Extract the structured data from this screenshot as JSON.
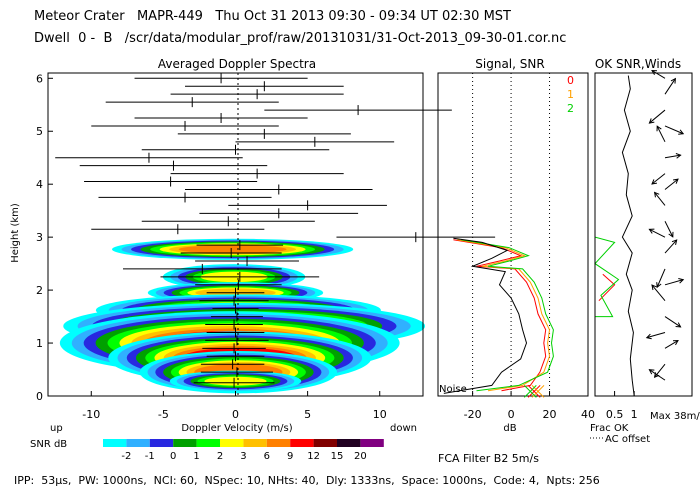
{
  "header": {
    "line1": "Meteor Crater   MAPR-449   Thu Oct 31 2013 09:30 - 09:34 UT 02:30 MST",
    "line2": "Dwell  0 -  B   /scr/data/modular_prof/raw/20131031/31-Oct-2013_09-30-01.cor.nc"
  },
  "footer": "IPP:  53μs,  PW: 1000ns,  NCI: 60,  NSpec: 10, NHts: 40,  Dly: 1333ns,  Space: 1000ns,  Code: 4,  Npts: 256",
  "colors": {
    "snr_scale": [
      "#00ffff",
      "#30b0ff",
      "#2828e0",
      "#00a000",
      "#00ff00",
      "#ffff00",
      "#ffc000",
      "#ff8000",
      "#ff0000",
      "#800000",
      "#200020",
      "#800080"
    ],
    "beam0": "#ff0000",
    "beam1": "#ffa000",
    "beam2": "#00d000",
    "black": "#000000"
  },
  "chart_data": [
    {
      "type": "heatmap",
      "title": "Averaged Doppler Spectra",
      "xlabel": "Doppler Velocity (m/s)",
      "ylabel": "Height (km)",
      "xlim": [
        -13,
        13
      ],
      "ylim": [
        0,
        6.1
      ],
      "xticks": [
        -10,
        -5,
        0,
        5,
        10
      ],
      "yticks": [
        0,
        1,
        2,
        3,
        4,
        5,
        6
      ],
      "corner_left": "up",
      "corner_right": "down",
      "blobs": [
        {
          "height": 2.77,
          "vel": -0.2,
          "width": 2.2,
          "thick": 0.1,
          "level": 7
        },
        {
          "height": 2.25,
          "vel": -0.1,
          "width": 1.3,
          "thick": 0.12,
          "level": 5
        },
        {
          "height": 1.95,
          "vel": 0.0,
          "width": 1.6,
          "thick": 0.1,
          "level": 6
        },
        {
          "height": 1.62,
          "vel": 0.2,
          "width": 2.6,
          "thick": 0.15,
          "level": 6
        },
        {
          "height": 1.32,
          "vel": 0.6,
          "width": 3.3,
          "thick": 0.22,
          "level": 7
        },
        {
          "height": 1.0,
          "vel": -0.4,
          "width": 3.1,
          "thick": 0.3,
          "level": 8
        },
        {
          "height": 0.72,
          "vel": 0.3,
          "width": 2.4,
          "thick": 0.25,
          "level": 8
        },
        {
          "height": 0.45,
          "vel": 0.2,
          "width": 1.8,
          "thick": 0.2,
          "level": 7
        },
        {
          "height": 0.28,
          "vel": 0.0,
          "width": 1.2,
          "thick": 0.1,
          "level": 5
        }
      ],
      "moments": [
        {
          "height": 0.25,
          "vel": -0.1,
          "width": 2.8
        },
        {
          "height": 0.45,
          "vel": 0.1,
          "width": 2.5
        },
        {
          "height": 0.6,
          "vel": -0.2,
          "width": 2.2
        },
        {
          "height": 0.75,
          "vel": 0.0,
          "width": 2.0
        },
        {
          "height": 0.9,
          "vel": -0.1,
          "width": 2.2
        },
        {
          "height": 1.05,
          "vel": 0.1,
          "width": 2.2
        },
        {
          "height": 1.2,
          "vel": 0.0,
          "width": 2.0
        },
        {
          "height": 1.35,
          "vel": -0.1,
          "width": 2.0
        },
        {
          "height": 1.5,
          "vel": 0.1,
          "width": 1.8
        },
        {
          "height": 1.65,
          "vel": 0.0,
          "width": 1.6
        },
        {
          "height": 1.8,
          "vel": -0.1,
          "width": 2.4
        },
        {
          "height": 1.95,
          "vel": 0.0,
          "width": 2.0
        },
        {
          "height": 2.1,
          "vel": 0.2,
          "width": 3.0
        },
        {
          "height": 2.25,
          "vel": 0.3,
          "width": 5.5
        },
        {
          "height": 2.4,
          "vel": -2.3,
          "width": 5.5
        },
        {
          "height": 2.55,
          "vel": 0.8,
          "width": 3.6
        },
        {
          "height": 2.7,
          "vel": -0.3,
          "width": 3.5
        },
        {
          "height": 2.85,
          "vel": 0.3,
          "width": 3.0
        },
        {
          "height": 3.0,
          "vel": 12.5,
          "width": 5.5
        },
        {
          "height": 3.15,
          "vel": -4.0,
          "width": 6.0
        },
        {
          "height": 3.3,
          "vel": -0.5,
          "width": 6.0
        },
        {
          "height": 3.45,
          "vel": 3.0,
          "width": 5.5
        },
        {
          "height": 3.6,
          "vel": 5.0,
          "width": 5.5
        },
        {
          "height": 3.75,
          "vel": -3.5,
          "width": 6.0
        },
        {
          "height": 3.9,
          "vel": 3.0,
          "width": 6.5
        },
        {
          "height": 4.05,
          "vel": -4.5,
          "width": 6.0
        },
        {
          "height": 4.2,
          "vel": 1.5,
          "width": 6.0
        },
        {
          "height": 4.35,
          "vel": -4.3,
          "width": 6.5
        },
        {
          "height": 4.5,
          "vel": -6.0,
          "width": 6.5
        },
        {
          "height": 4.65,
          "vel": 0.0,
          "width": 6.5
        },
        {
          "height": 4.8,
          "vel": 5.5,
          "width": 5.5
        },
        {
          "height": 4.95,
          "vel": 2.0,
          "width": 6.0
        },
        {
          "height": 5.1,
          "vel": -3.5,
          "width": 6.5
        },
        {
          "height": 5.25,
          "vel": -1.0,
          "width": 6.0
        },
        {
          "height": 5.4,
          "vel": 8.5,
          "width": 6.5
        },
        {
          "height": 5.55,
          "vel": -3.0,
          "width": 6.0
        },
        {
          "height": 5.7,
          "vel": 1.5,
          "width": 6.0
        },
        {
          "height": 5.85,
          "vel": 2.0,
          "width": 5.5
        },
        {
          "height": 6.0,
          "vel": -1.0,
          "width": 6.0
        }
      ]
    },
    {
      "type": "line",
      "title": "Signal, SNR",
      "xlabel": "dB",
      "xlim": [
        -38,
        40
      ],
      "ylim": [
        0,
        6.1
      ],
      "xticks": [
        -20,
        0,
        20,
        40
      ],
      "dotted_x": [
        -20,
        0,
        20
      ],
      "noise_label": "Noise",
      "beam_labels": [
        "0",
        "1",
        "2"
      ],
      "series": [
        {
          "name": "0",
          "color": "#ff0000",
          "points": [
            [
              -5,
              0.1
            ],
            [
              10,
              0.2
            ],
            [
              15,
              0.45
            ],
            [
              18,
              0.75
            ],
            [
              17,
              1.0
            ],
            [
              18,
              1.25
            ],
            [
              14,
              1.55
            ],
            [
              12,
              1.85
            ],
            [
              8,
              2.15
            ],
            [
              2,
              2.4
            ],
            [
              -18,
              2.45
            ],
            [
              -6,
              2.55
            ],
            [
              5,
              2.65
            ],
            [
              -5,
              2.8
            ],
            [
              -30,
              2.95
            ]
          ]
        },
        {
          "name": "1",
          "color": "#ffa000",
          "points": [
            [
              -12,
              0.1
            ],
            [
              6,
              0.2
            ],
            [
              17,
              0.45
            ],
            [
              20,
              0.75
            ],
            [
              19,
              1.0
            ],
            [
              20,
              1.25
            ],
            [
              16,
              1.55
            ],
            [
              14,
              1.85
            ],
            [
              10,
              2.15
            ],
            [
              4,
              2.4
            ],
            [
              -15,
              2.45
            ],
            [
              -3,
              2.55
            ],
            [
              7,
              2.65
            ],
            [
              -3,
              2.8
            ],
            [
              -28,
              2.95
            ]
          ]
        },
        {
          "name": "2",
          "color": "#00d000",
          "points": [
            [
              -18,
              0.1
            ],
            [
              4,
              0.2
            ],
            [
              19,
              0.45
            ],
            [
              22,
              0.75
            ],
            [
              21,
              1.0
            ],
            [
              22,
              1.25
            ],
            [
              18,
              1.55
            ],
            [
              16,
              1.85
            ],
            [
              12,
              2.15
            ],
            [
              6,
              2.4
            ],
            [
              -12,
              2.45
            ],
            [
              -1,
              2.55
            ],
            [
              9,
              2.65
            ],
            [
              -1,
              2.8
            ],
            [
              -26,
              2.95
            ]
          ]
        },
        {
          "name": "Noise",
          "color": "#000000",
          "points": [
            [
              -35,
              0.05
            ],
            [
              -10,
              0.2
            ],
            [
              -5,
              0.45
            ],
            [
              5,
              0.7
            ],
            [
              8,
              1.0
            ],
            [
              6,
              1.25
            ],
            [
              4,
              1.55
            ],
            [
              0,
              1.85
            ],
            [
              -6,
              2.1
            ],
            [
              -3,
              2.35
            ],
            [
              -20,
              2.45
            ],
            [
              -10,
              2.6
            ],
            [
              -2,
              2.75
            ],
            [
              -15,
              2.9
            ],
            [
              -30,
              2.98
            ]
          ]
        }
      ]
    },
    {
      "type": "line",
      "title": "OK SNR,Winds",
      "xlabel": "Frac OK",
      "xticks": [
        0.5,
        1
      ],
      "xlim": [
        0,
        1.2
      ],
      "ylim": [
        0,
        6.1
      ],
      "note": "AC offset",
      "scale_label": "Max 38m/s",
      "series": [
        {
          "name": "frac_ok",
          "color": "#000000",
          "points": [
            [
              1.0,
              0.0
            ],
            [
              0.95,
              0.3
            ],
            [
              0.9,
              0.7
            ],
            [
              0.98,
              1.2
            ],
            [
              0.85,
              1.6
            ],
            [
              0.95,
              2.0
            ],
            [
              0.8,
              2.3
            ],
            [
              0.95,
              2.7
            ],
            [
              0.7,
              3.0
            ],
            [
              0.95,
              3.4
            ],
            [
              0.8,
              3.8
            ],
            [
              0.85,
              4.2
            ],
            [
              0.7,
              4.6
            ],
            [
              0.9,
              5.0
            ],
            [
              0.75,
              5.4
            ],
            [
              0.9,
              5.8
            ],
            [
              0.85,
              6.05
            ]
          ]
        },
        {
          "name": "snr_ok_0",
          "color": "#ff0000",
          "points": [
            [
              0.2,
              2.3
            ],
            [
              0.5,
              2.1
            ],
            [
              0.3,
              1.95
            ],
            [
              0.1,
              1.8
            ]
          ]
        },
        {
          "name": "snr_ok_2",
          "color": "#00d000",
          "points": [
            [
              0.0,
              0.0
            ],
            [
              0.0,
              1.5
            ],
            [
              0.45,
              1.5
            ],
            [
              0.15,
              1.9
            ],
            [
              0.6,
              2.2
            ],
            [
              0.0,
              2.5
            ],
            [
              0.5,
              2.9
            ],
            [
              0.0,
              3.0
            ],
            [
              0.0,
              6.05
            ]
          ]
        }
      ],
      "winds": [
        {
          "height": 0.3,
          "u": -12,
          "v": 8
        },
        {
          "height": 0.6,
          "u": -8,
          "v": -10
        },
        {
          "height": 0.9,
          "u": 10,
          "v": 6
        },
        {
          "height": 1.2,
          "u": -14,
          "v": -4
        },
        {
          "height": 1.5,
          "u": 12,
          "v": -8
        },
        {
          "height": 1.8,
          "u": -10,
          "v": 12
        },
        {
          "height": 2.1,
          "u": 14,
          "v": 4
        },
        {
          "height": 2.4,
          "u": -6,
          "v": -14
        },
        {
          "height": 2.7,
          "u": 9,
          "v": 10
        },
        {
          "height": 3.0,
          "u": -12,
          "v": 6
        },
        {
          "height": 3.3,
          "u": 6,
          "v": -12
        },
        {
          "height": 3.6,
          "u": -8,
          "v": 10
        },
        {
          "height": 3.9,
          "u": 10,
          "v": 8
        },
        {
          "height": 4.2,
          "u": -10,
          "v": -8
        },
        {
          "height": 4.5,
          "u": 12,
          "v": 2
        },
        {
          "height": 4.8,
          "u": -6,
          "v": 12
        },
        {
          "height": 5.1,
          "u": 14,
          "v": -6
        },
        {
          "height": 5.4,
          "u": -12,
          "v": -10
        },
        {
          "height": 5.7,
          "u": 8,
          "v": 12
        },
        {
          "height": 6.0,
          "u": -10,
          "v": 6
        }
      ]
    }
  ],
  "colorbar": {
    "label": "SNR dB",
    "tick_labels": [
      "-2",
      "-1",
      "0",
      "1",
      "2",
      "3",
      "6",
      "9",
      "12",
      "15",
      "20"
    ]
  },
  "filter_label": "FCA Filter B2   5m/s"
}
